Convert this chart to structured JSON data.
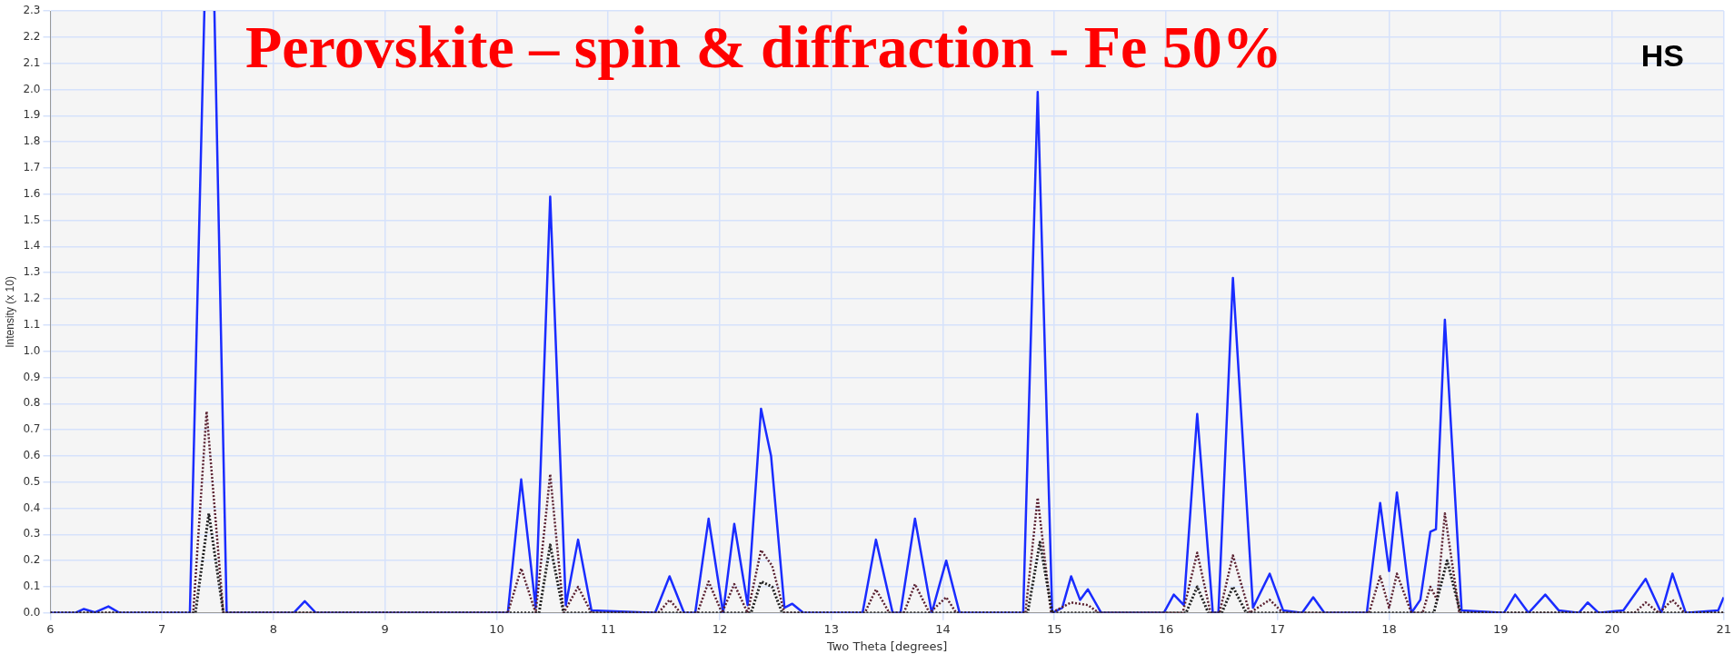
{
  "chart_data": {
    "type": "line",
    "title": "Perovskite – spin & diffraction - Fe 50%",
    "xlabel": "Two Theta [degrees]",
    "ylabel": "Intensity (x 10)",
    "annotations": [
      "HS"
    ],
    "xlim": [
      6,
      21
    ],
    "ylim": [
      0,
      2.3
    ],
    "xticks": [
      6,
      7,
      8,
      9,
      10,
      11,
      12,
      13,
      14,
      15,
      16,
      17,
      18,
      19,
      20,
      21
    ],
    "yticks": [
      {
        "value": 0,
        "label": "0.0"
      },
      0.1,
      0.2,
      0.3,
      0.4,
      0.5,
      0.6,
      0.7,
      0.8,
      0.9,
      {
        "value": 1,
        "label": "1.0"
      },
      1.1,
      1.2,
      1.3,
      1.4,
      1.5,
      1.6,
      1.7,
      1.8,
      1.9,
      {
        "value": 2,
        "label": "2.0"
      },
      2.1,
      2.2,
      2.3
    ],
    "grid": true,
    "legend": false,
    "marker": "none",
    "series": [
      {
        "color": "#1a2cff",
        "line_style": "solid",
        "x": [
          6.0,
          6.22,
          6.3,
          6.4,
          6.52,
          6.62,
          7.25,
          7.38,
          7.42,
          7.47,
          7.58,
          8.18,
          8.28,
          8.38,
          10.1,
          10.22,
          10.35,
          10.48,
          10.62,
          10.73,
          10.85,
          11.42,
          11.55,
          11.68,
          11.78,
          11.9,
          12.03,
          12.13,
          12.25,
          12.37,
          12.46,
          12.58,
          12.65,
          12.75,
          13.28,
          13.4,
          13.55,
          13.62,
          13.75,
          13.9,
          14.03,
          14.15,
          14.72,
          14.85,
          14.98,
          15.07,
          15.15,
          15.23,
          15.3,
          15.42,
          15.98,
          16.07,
          16.16,
          16.28,
          16.42,
          16.47,
          16.6,
          16.78,
          16.93,
          17.05,
          17.22,
          17.32,
          17.42,
          17.8,
          17.92,
          18.0,
          18.07,
          18.2,
          18.28,
          18.37,
          18.42,
          18.5,
          18.65,
          19.03,
          19.13,
          19.25,
          19.4,
          19.52,
          19.7,
          19.78,
          19.88,
          20.1,
          20.3,
          20.44,
          20.54,
          20.66,
          20.95,
          21.0
        ],
        "values": [
          0,
          0,
          0.015,
          0.002,
          0.025,
          0,
          0,
          2.3,
          null,
          2.3,
          0,
          0,
          0.045,
          0,
          0,
          0.51,
          0.02,
          1.59,
          0.03,
          0.28,
          0.01,
          0,
          0.14,
          0,
          0,
          0.36,
          0,
          0.34,
          0.03,
          0.78,
          0.6,
          0.02,
          0.035,
          0,
          0,
          0.28,
          0,
          0,
          0.36,
          0,
          0.2,
          0,
          0,
          1.99,
          0,
          0.02,
          0.14,
          0.05,
          0.09,
          0,
          0,
          0.07,
          0.03,
          0.76,
          0,
          0,
          1.28,
          0.02,
          0.15,
          0.01,
          0,
          0.06,
          0,
          0,
          0.42,
          0.16,
          0.46,
          0,
          0.05,
          0.31,
          0.32,
          1.12,
          0.01,
          0,
          0.07,
          0,
          0.07,
          0.01,
          0,
          0.04,
          0,
          0.01,
          0.13,
          0,
          0.15,
          0,
          0.01,
          0.06
        ]
      },
      {
        "color": "#5a2030",
        "line_style": "dotted",
        "x": [
          6.0,
          7.28,
          7.4,
          7.55,
          10.1,
          10.22,
          10.35,
          10.48,
          10.6,
          10.73,
          10.85,
          11.45,
          11.55,
          11.65,
          11.8,
          11.9,
          12.02,
          12.13,
          12.25,
          12.37,
          12.47,
          12.58,
          13.3,
          13.4,
          13.52,
          13.65,
          13.75,
          13.88,
          14.03,
          14.12,
          14.74,
          14.85,
          14.97,
          15.15,
          15.3,
          15.4,
          16.15,
          16.28,
          16.4,
          16.48,
          16.6,
          16.75,
          16.93,
          17.05,
          17.82,
          17.92,
          18.0,
          18.07,
          18.2,
          18.3,
          18.37,
          18.43,
          18.5,
          18.63,
          20.2,
          20.3,
          20.42,
          20.54,
          20.65,
          21.0
        ],
        "values": [
          0,
          0,
          0.77,
          0,
          0,
          0.17,
          0,
          0.53,
          0,
          0.1,
          0,
          0,
          0.05,
          0,
          0,
          0.12,
          0,
          0.11,
          0,
          0.24,
          0.18,
          0,
          0,
          0.09,
          0,
          0,
          0.11,
          0,
          0.06,
          0,
          0,
          0.44,
          0,
          0.04,
          0.03,
          0,
          0,
          0.23,
          0,
          0,
          0.22,
          0,
          0.05,
          0,
          0,
          0.14,
          0.02,
          0.15,
          0,
          0,
          0.1,
          0.05,
          0.38,
          0,
          0,
          0.04,
          0,
          0.05,
          0,
          0
        ]
      },
      {
        "color": "#202020",
        "line_style": "dotted",
        "x": [
          6.0,
          7.3,
          7.42,
          7.55,
          10.38,
          10.48,
          10.6,
          12.28,
          12.37,
          12.47,
          12.56,
          14.76,
          14.87,
          14.98,
          16.18,
          16.28,
          16.38,
          16.5,
          16.6,
          16.72,
          18.4,
          18.52,
          18.64,
          21.0
        ],
        "values": [
          0,
          0,
          0.38,
          0,
          0,
          0.26,
          0,
          0,
          0.12,
          0.1,
          0,
          0,
          0.27,
          0,
          0,
          0.1,
          0,
          0,
          0.1,
          0,
          0,
          0.2,
          0,
          0
        ]
      }
    ]
  }
}
